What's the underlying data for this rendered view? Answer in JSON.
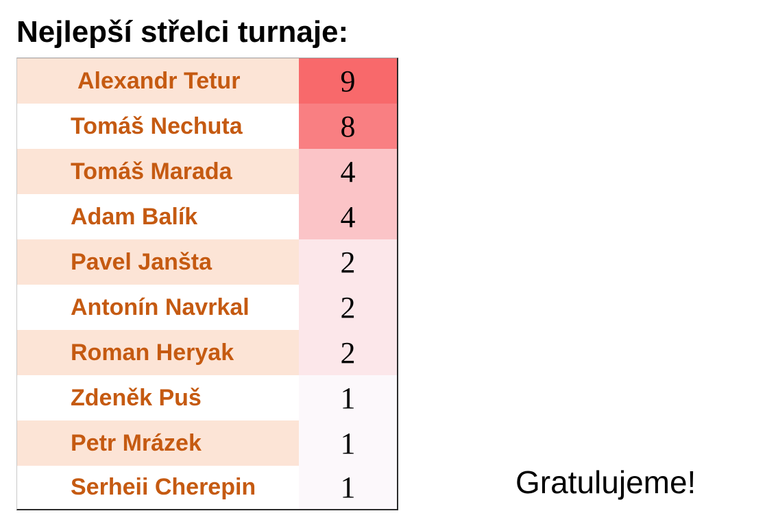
{
  "title": "Nejlepší střelci turnaje:",
  "scorers": [
    {
      "name": "Alexandr Tetur",
      "goals": "9",
      "color": "#f8696b"
    },
    {
      "name": "Tomáš Nechuta",
      "goals": "8",
      "color": "#f97f82"
    },
    {
      "name": "Tomáš Marada",
      "goals": "4",
      "color": "#fbc4c7"
    },
    {
      "name": "Adam Balík",
      "goals": "4",
      "color": "#fbc4c7"
    },
    {
      "name": "Pavel Janšta",
      "goals": "2",
      "color": "#fce7ea"
    },
    {
      "name": "Antonín Navrkal",
      "goals": "2",
      "color": "#fce7ea"
    },
    {
      "name": "Roman Heryak",
      "goals": "2",
      "color": "#fce7ea"
    },
    {
      "name": "Zdeněk Puš",
      "goals": "1",
      "color": "#fcf8fb"
    },
    {
      "name": "Petr Mrázek",
      "goals": "1",
      "color": "#fcf8fb"
    },
    {
      "name": "Serheii Cherepin",
      "goals": "1",
      "color": "#fcf8fb"
    }
  ],
  "congrats": "Gratulujeme!"
}
